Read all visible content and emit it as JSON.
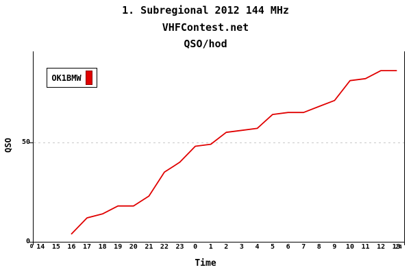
{
  "header": {
    "title": "1. Subregional 2012 144 MHz",
    "subtitle": "VHFContest.net",
    "metric": "QSO/hod"
  },
  "legend": {
    "label": "OK1BMW"
  },
  "axes": {
    "ylabel": "QSO",
    "xlabel": "Time",
    "x_origin_label": "0",
    "x_end_label": "24"
  },
  "colors": {
    "line": "#e00000",
    "marker_fill": "#e00000",
    "marker_border": "#8b0000",
    "grid": "#c8c8c8",
    "axis": "#000000",
    "background": "#ffffff"
  },
  "chart_data": {
    "type": "line",
    "title": "QSO/hod",
    "xlabel": "Time",
    "ylabel": "QSO",
    "categories": [
      "14",
      "15",
      "16",
      "17",
      "18",
      "19",
      "20",
      "21",
      "22",
      "23",
      "0",
      "1",
      "2",
      "3",
      "4",
      "5",
      "6",
      "7",
      "8",
      "9",
      "10",
      "11",
      "12",
      "13"
    ],
    "x_range": [
      0,
      24
    ],
    "ylim": [
      0,
      95
    ],
    "yticks": [
      0,
      50
    ],
    "grid_y": [
      50
    ],
    "grid_style": "dotted",
    "legend_position": "top-left",
    "series": [
      {
        "name": "OK1BMW",
        "color": "#e00000",
        "hours": [
          "16",
          "17",
          "18",
          "19",
          "20",
          "21",
          "22",
          "23",
          "0",
          "1",
          "2",
          "3",
          "4",
          "5",
          "6",
          "7",
          "8",
          "9",
          "10",
          "11",
          "12",
          "13"
        ],
        "x_elapsed": [
          2.5,
          3.5,
          4.5,
          5.5,
          6.5,
          7.5,
          8.5,
          9.5,
          10.5,
          11.5,
          12.5,
          13.5,
          14.5,
          15.5,
          16.5,
          17.5,
          18.5,
          19.5,
          20.5,
          21.5,
          22.5,
          23.5
        ],
        "values": [
          4,
          12,
          14,
          18,
          18,
          23,
          35,
          40,
          48,
          49,
          55,
          56,
          57,
          64,
          65,
          65,
          68,
          71,
          81,
          82,
          86,
          86
        ]
      }
    ]
  }
}
